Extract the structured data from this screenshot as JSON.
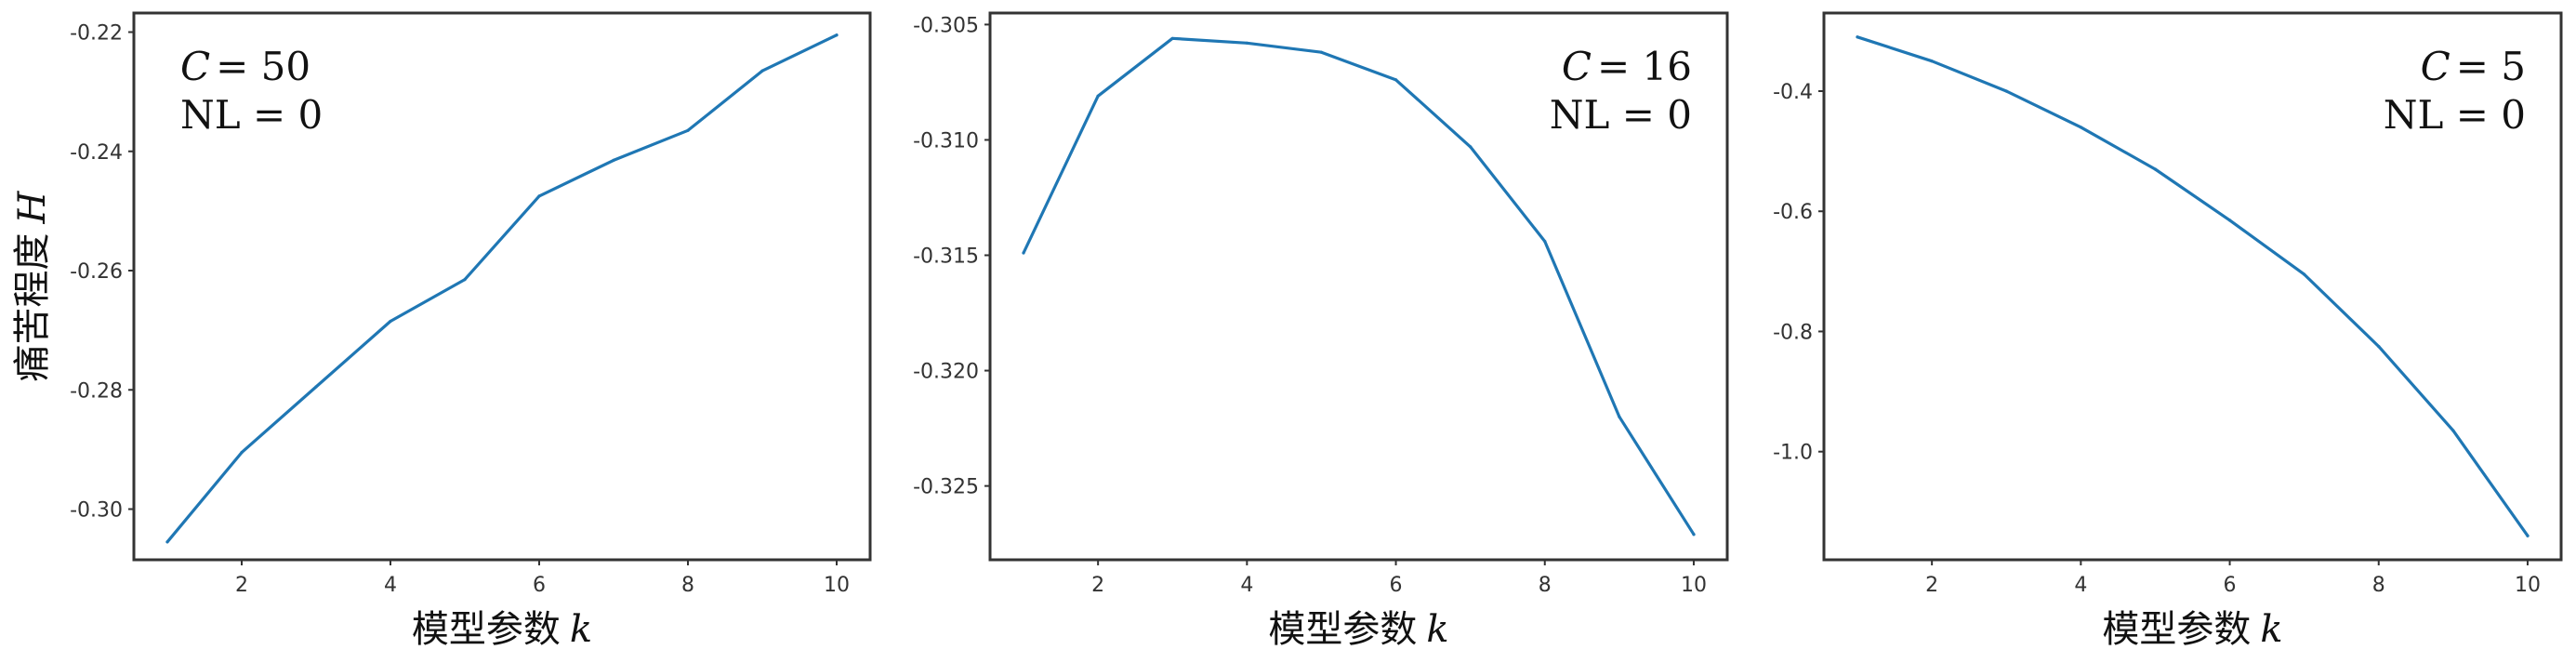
{
  "chart_data": [
    {
      "type": "line",
      "x": [
        1,
        2,
        3,
        4,
        5,
        6,
        7,
        8,
        9,
        10
      ],
      "series": [
        {
          "values": [
            -0.3055,
            -0.2905,
            -0.2795,
            -0.2685,
            -0.2615,
            -0.2475,
            -0.2415,
            -0.2365,
            -0.2265,
            -0.2205
          ]
        }
      ],
      "xlabel": {
        "prefix": "模型参数",
        "symbol": "k"
      },
      "ylabel": {
        "prefix": "痛苦程度",
        "symbol": "H"
      },
      "xticks": [
        2,
        4,
        6,
        8,
        10
      ],
      "yticks": [
        -0.3,
        -0.28,
        -0.26,
        -0.24,
        -0.22
      ],
      "ytick_labels": [
        "-0.30",
        "-0.28",
        "-0.26",
        "-0.24",
        "-0.22"
      ],
      "xlim": [
        0.55,
        10.45
      ],
      "ylim": [
        -0.3085,
        -0.2168
      ],
      "annotation": {
        "c_symbol": "C",
        "c_value": "= 50",
        "nl_text": "NL = 0",
        "align": "left"
      },
      "grid": false
    },
    {
      "type": "line",
      "x": [
        1,
        2,
        3,
        4,
        5,
        6,
        7,
        8,
        9,
        10
      ],
      "series": [
        {
          "values": [
            -0.3149,
            -0.3081,
            -0.3056,
            -0.3058,
            -0.3062,
            -0.3074,
            -0.3103,
            -0.3144,
            -0.322,
            -0.3271
          ]
        }
      ],
      "xlabel": {
        "prefix": "模型参数",
        "symbol": "k"
      },
      "ylabel": null,
      "xticks": [
        2,
        4,
        6,
        8,
        10
      ],
      "yticks": [
        -0.325,
        -0.32,
        -0.315,
        -0.31,
        -0.305
      ],
      "ytick_labels": [
        "-0.325",
        "-0.320",
        "-0.315",
        "-0.310",
        "-0.305"
      ],
      "xlim": [
        0.55,
        10.45
      ],
      "ylim": [
        -0.3282,
        -0.3045
      ],
      "annotation": {
        "c_symbol": "C",
        "c_value": "= 16",
        "nl_text": "NL = 0",
        "align": "right"
      },
      "grid": false
    },
    {
      "type": "line",
      "x": [
        1,
        2,
        3,
        4,
        5,
        6,
        7,
        8,
        9,
        10
      ],
      "series": [
        {
          "values": [
            -0.31,
            -0.35,
            -0.4,
            -0.46,
            -0.53,
            -0.615,
            -0.705,
            -0.825,
            -0.965,
            -1.14
          ]
        }
      ],
      "xlabel": {
        "prefix": "模型参数",
        "symbol": "k"
      },
      "ylabel": null,
      "xticks": [
        2,
        4,
        6,
        8,
        10
      ],
      "yticks": [
        -1.0,
        -0.8,
        -0.6,
        -0.4
      ],
      "ytick_labels": [
        "-1.0",
        "-0.8",
        "-0.6",
        "-0.4"
      ],
      "xlim": [
        0.55,
        10.45
      ],
      "ylim": [
        -1.18,
        -0.27
      ],
      "annotation": {
        "c_symbol": "C",
        "c_value": "= 5",
        "nl_text": "NL = 0",
        "align": "right"
      },
      "grid": false
    }
  ],
  "colors": {
    "line": "#1f77b4",
    "frame": "#333333",
    "text": "#111111"
  }
}
